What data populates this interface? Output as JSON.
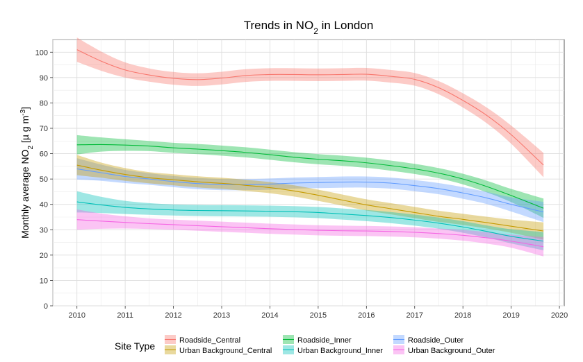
{
  "chart_data": {
    "type": "line",
    "title_main": "Trends in NO",
    "title_sub": "2",
    "title_rest": " in London",
    "ylabel_main": "Monthly average NO",
    "ylabel_sub": "2",
    "ylabel_units_a": " [µ g m",
    "ylabel_sup": "-3",
    "ylabel_units_b": "]",
    "xlabel": "",
    "xlim": [
      2009.5,
      2020.1
    ],
    "ylim": [
      0,
      105
    ],
    "x_ticks": [
      2010,
      2011,
      2012,
      2013,
      2014,
      2015,
      2016,
      2017,
      2018,
      2019,
      2020
    ],
    "y_ticks": [
      0,
      10,
      20,
      30,
      40,
      50,
      60,
      70,
      80,
      90,
      100
    ],
    "grid": true,
    "legend_position": "bottom",
    "legend_title": "Site Type",
    "x": [
      2010.0,
      2010.5,
      2011.0,
      2011.5,
      2012.0,
      2012.5,
      2013.0,
      2013.5,
      2014.0,
      2014.5,
      2015.0,
      2015.5,
      2016.0,
      2016.5,
      2017.0,
      2017.5,
      2018.0,
      2018.5,
      2019.0,
      2019.67
    ],
    "series": [
      {
        "name": "Roadside_Central",
        "color": "#f8766d",
        "values": [
          101,
          96.5,
          93,
          91,
          89.7,
          89.2,
          89.8,
          90.8,
          91.2,
          91.2,
          91.1,
          91.2,
          91.3,
          90.5,
          89.3,
          86,
          81,
          75,
          67.5,
          55.5
        ],
        "half_width": [
          4.8,
          3.8,
          3,
          2.6,
          2.5,
          2.5,
          2.5,
          2.5,
          2.5,
          2.5,
          2.5,
          2.5,
          2.5,
          2.5,
          2.5,
          2.6,
          2.8,
          3.1,
          3.6,
          4.8
        ]
      },
      {
        "name": "Roadside_Inner",
        "color": "#00ba38",
        "values": [
          63.5,
          63.6,
          63.4,
          63,
          62.3,
          61.8,
          61.2,
          60.5,
          59.6,
          58.6,
          57.8,
          57.2,
          56.4,
          55.3,
          54,
          52.3,
          50,
          47,
          43.5,
          38.5
        ],
        "half_width": [
          3.8,
          2.8,
          2.3,
          2,
          2,
          2,
          2,
          2,
          2,
          2,
          2,
          2,
          2,
          2,
          2,
          2,
          2.1,
          2.3,
          2.6,
          3.8
        ]
      },
      {
        "name": "Roadside_Outer",
        "color": "#619cff",
        "values": [
          54,
          52.5,
          51,
          50,
          49,
          48.2,
          47.8,
          47.8,
          48,
          48.4,
          48.6,
          48.8,
          48.8,
          48.4,
          47.4,
          46.2,
          44.5,
          42.5,
          40,
          37
        ],
        "half_width": [
          4.2,
          3.2,
          2.6,
          2.3,
          2.2,
          2.2,
          2.2,
          2.2,
          2.2,
          2.2,
          2.2,
          2.2,
          2.2,
          2.2,
          2.2,
          2.2,
          2.3,
          2.4,
          2.8,
          4
        ]
      },
      {
        "name": "Urban Background_Central",
        "color": "#c49a00",
        "values": [
          55.5,
          53.5,
          51.8,
          50.5,
          49.7,
          48.9,
          48.3,
          47.5,
          46.6,
          45.3,
          43.6,
          41.7,
          39.8,
          38.3,
          36.8,
          35.3,
          34.1,
          32.8,
          31.4,
          29.5
        ],
        "half_width": [
          4,
          3,
          2.5,
          2.2,
          2.2,
          2.2,
          2.2,
          2.2,
          2.2,
          2.2,
          2.2,
          2.2,
          2.2,
          2.2,
          2.2,
          2.2,
          2.2,
          2.3,
          2.6,
          3.4
        ]
      },
      {
        "name": "Urban Background_Inner",
        "color": "#00c0b8",
        "values": [
          41,
          39.8,
          38.8,
          38.2,
          37.8,
          37.6,
          37.5,
          37.4,
          37.3,
          37.1,
          36.8,
          36.2,
          35.6,
          34.8,
          33.8,
          32.6,
          31.1,
          29.3,
          27.4,
          25.5
        ],
        "half_width": [
          4.2,
          3.2,
          2.6,
          2.3,
          2.2,
          2.2,
          2.2,
          2.2,
          2.2,
          2.2,
          2.2,
          2.2,
          2.2,
          2.2,
          2.2,
          2.2,
          2.3,
          2.4,
          2.8,
          3.6
        ]
      },
      {
        "name": "Urban Background_Outer",
        "color": "#f564e3",
        "values": [
          34,
          33.4,
          32.9,
          32.4,
          32,
          31.6,
          31.2,
          30.8,
          30.4,
          30.1,
          29.8,
          29.6,
          29.5,
          29.3,
          29,
          28.5,
          27.8,
          26.8,
          25.5,
          23.3
        ],
        "half_width": [
          4,
          3,
          2.4,
          2.1,
          2,
          2,
          2,
          2,
          2,
          2,
          2,
          2,
          2,
          2,
          2,
          2,
          2.1,
          2.3,
          2.6,
          3.8
        ]
      }
    ]
  }
}
